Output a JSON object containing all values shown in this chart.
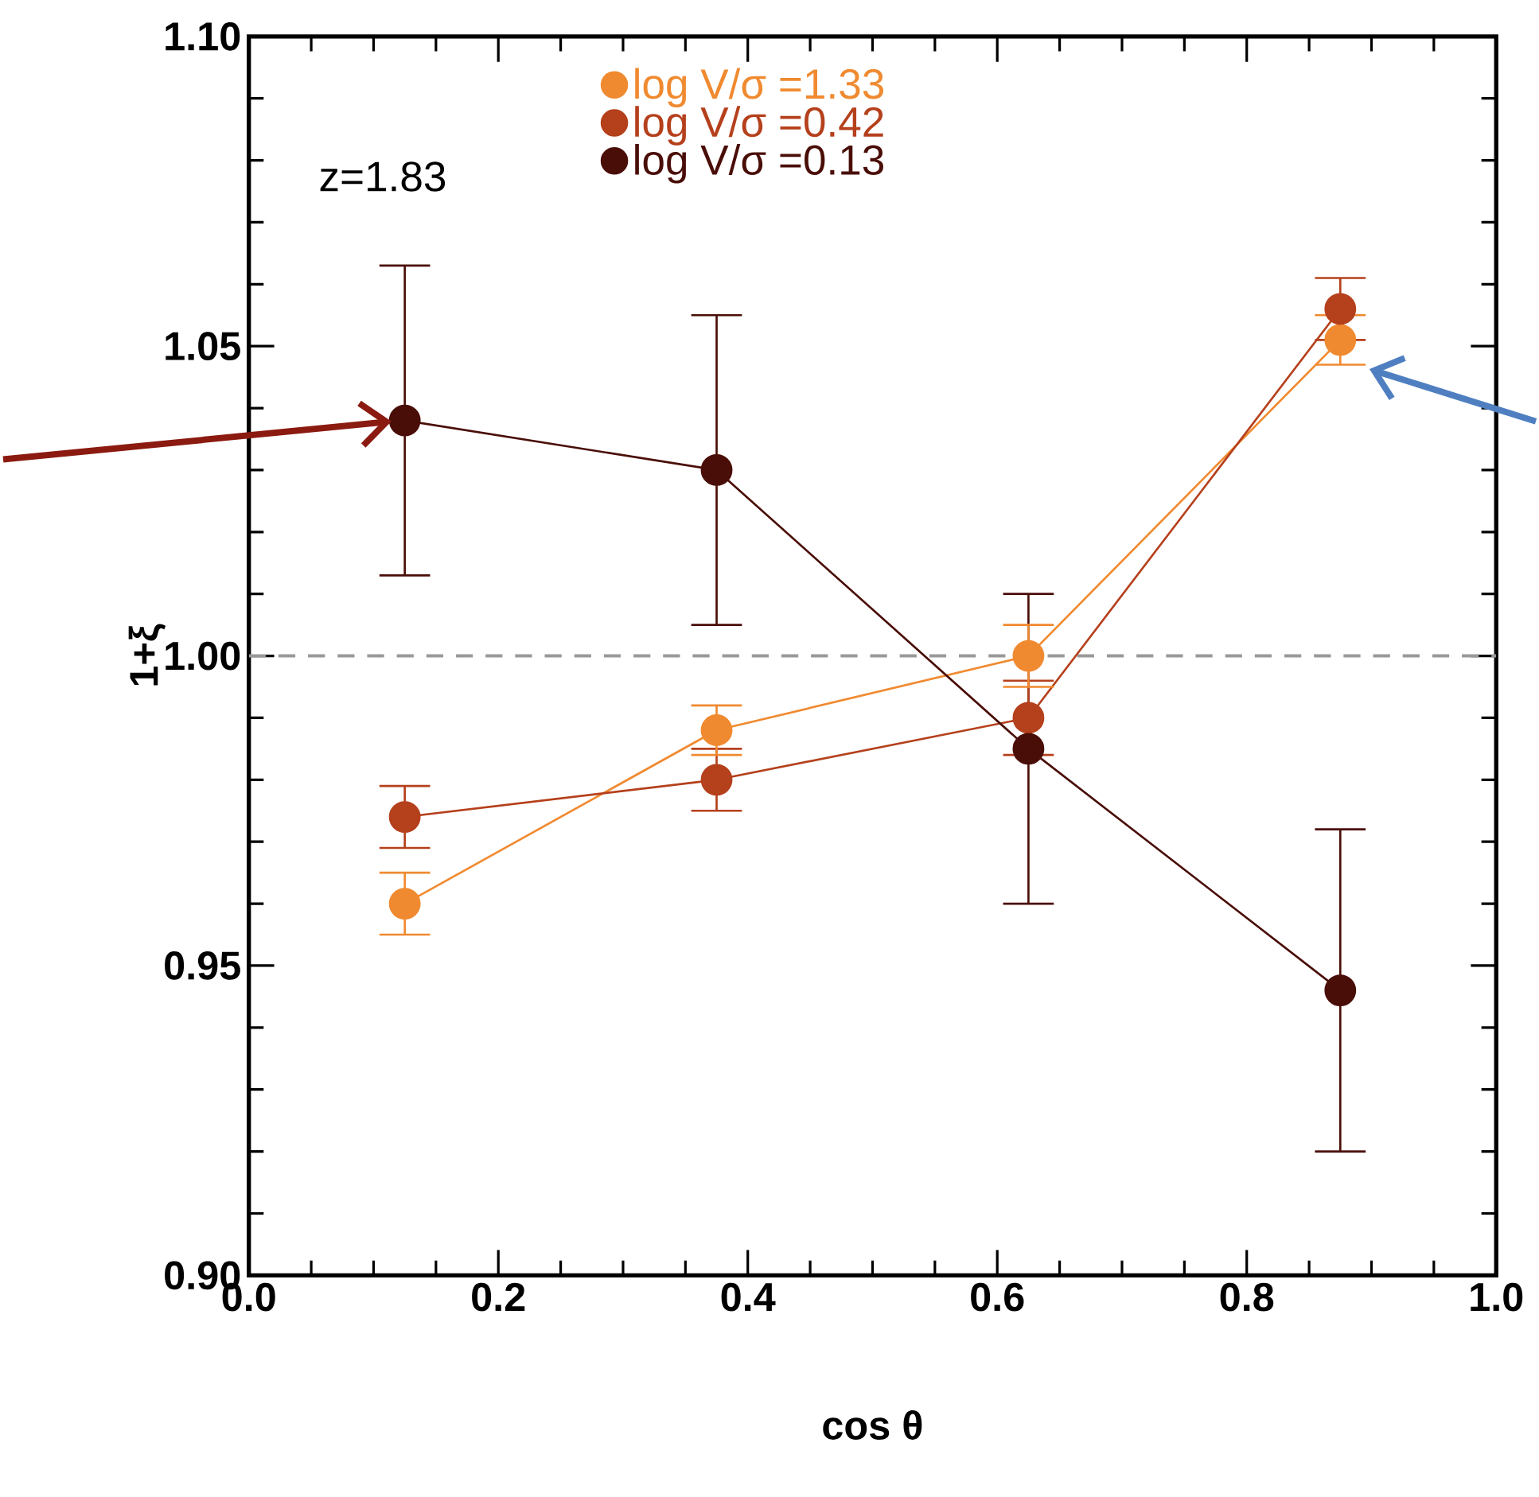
{
  "chart_data": {
    "type": "line",
    "xlabel": "cos θ",
    "ylabel": "1+ξ",
    "annotations": [
      "z=1.83"
    ],
    "x": [
      0.125,
      0.375,
      0.625,
      0.875
    ],
    "series": [
      {
        "name": "log V/σ =1.33",
        "color": "#f08a30",
        "values": [
          0.96,
          0.988,
          1.0,
          1.051
        ],
        "errors": [
          0.005,
          0.004,
          0.005,
          0.004
        ]
      },
      {
        "name": "log V/σ =0.42",
        "color": "#b5401c",
        "values": [
          0.974,
          0.98,
          0.99,
          1.056
        ],
        "errors": [
          0.005,
          0.005,
          0.006,
          0.005
        ]
      },
      {
        "name": "log V/σ =0.13",
        "color": "#4a0e08",
        "values": [
          1.038,
          1.03,
          0.985,
          0.946
        ],
        "errors": [
          0.025,
          0.025,
          0.025,
          0.026
        ]
      }
    ],
    "xlim": [
      0,
      1
    ],
    "ylim": [
      0.9,
      1.1
    ],
    "xticks": [
      {
        "value": 0,
        "label": "0.0"
      },
      0.2,
      0.4,
      0.6,
      0.8,
      {
        "value": 1,
        "label": "1.0"
      }
    ],
    "yticks": [
      {
        "value": 0.9,
        "label": "0.90"
      },
      {
        "value": 0.95,
        "label": "0.95"
      },
      {
        "value": 1.0,
        "label": "1.00"
      },
      {
        "value": 1.05,
        "label": "1.05"
      },
      {
        "value": 1.1,
        "label": "1.10"
      }
    ],
    "ref_lines": [
      {
        "axis": "y",
        "value": 1.0,
        "color": "#999999",
        "line_style": "dashed"
      }
    ],
    "legend": "top",
    "marker": "circle",
    "line_style": "solid"
  }
}
